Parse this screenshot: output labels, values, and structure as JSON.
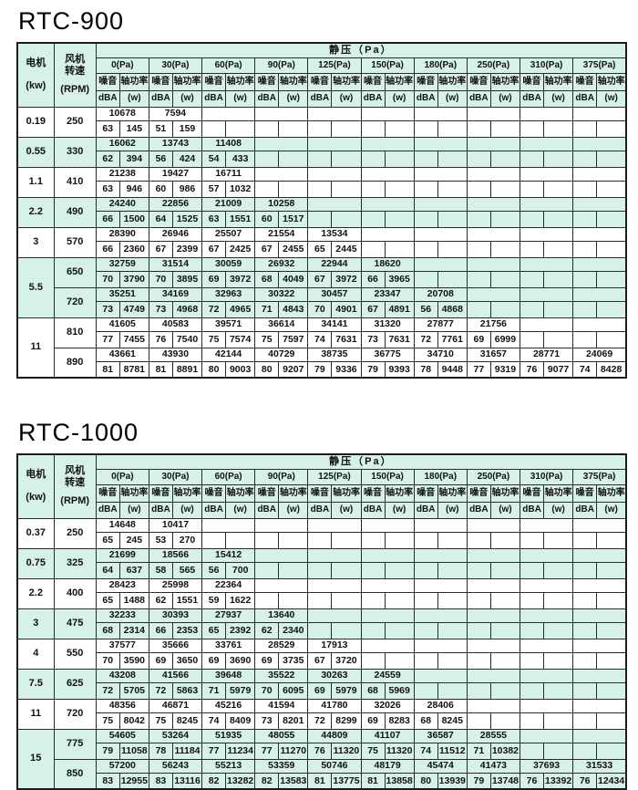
{
  "page": {
    "colors": {
      "row_shade": "#d6f1e7",
      "border": "#2b2b2b",
      "text": "#111111",
      "background": "#ffffff"
    }
  },
  "header": {
    "motor_label": "电机",
    "motor_unit": "(kw)",
    "fan_label_line1": "风机",
    "fan_label_line2": "转速",
    "fan_unit": "(RPM)",
    "static_pressure_label": "静压（Pa）",
    "noise_label": "噪音",
    "noise_unit": "dBA",
    "power_label": "轴功率",
    "power_unit": "(w)",
    "pressure_labels": [
      "0(Pa)",
      "30(Pa)",
      "60(Pa)",
      "90(Pa)",
      "125(Pa)",
      "150(Pa)",
      "180(Pa)",
      "250(Pa)",
      "310(Pa)",
      "375(Pa)"
    ]
  },
  "tables": [
    {
      "title": "RTC-900",
      "motor_groups": [
        {
          "motor": "0.19",
          "shaded": false,
          "speeds": [
            {
              "rpm": "250",
              "cells": [
                [
                  "10678",
                  "63",
                  "145"
                ],
                [
                  "7594",
                  "51",
                  "159"
                ],
                null,
                null,
                null,
                null,
                null,
                null,
                null,
                null
              ]
            }
          ]
        },
        {
          "motor": "0.55",
          "shaded": true,
          "speeds": [
            {
              "rpm": "330",
              "cells": [
                [
                  "16062",
                  "62",
                  "394"
                ],
                [
                  "13743",
                  "56",
                  "424"
                ],
                [
                  "11408",
                  "54",
                  "433"
                ],
                null,
                null,
                null,
                null,
                null,
                null,
                null
              ]
            }
          ]
        },
        {
          "motor": "1.1",
          "shaded": false,
          "speeds": [
            {
              "rpm": "410",
              "cells": [
                [
                  "21238",
                  "63",
                  "946"
                ],
                [
                  "19427",
                  "60",
                  "986"
                ],
                [
                  "16711",
                  "57",
                  "1032"
                ],
                null,
                null,
                null,
                null,
                null,
                null,
                null
              ]
            }
          ]
        },
        {
          "motor": "2.2",
          "shaded": true,
          "speeds": [
            {
              "rpm": "490",
              "cells": [
                [
                  "24240",
                  "66",
                  "1500"
                ],
                [
                  "22856",
                  "64",
                  "1525"
                ],
                [
                  "21009",
                  "63",
                  "1551"
                ],
                [
                  "10258",
                  "60",
                  "1517"
                ],
                null,
                null,
                null,
                null,
                null,
                null
              ]
            }
          ]
        },
        {
          "motor": "3",
          "shaded": false,
          "speeds": [
            {
              "rpm": "570",
              "cells": [
                [
                  "28390",
                  "66",
                  "2360"
                ],
                [
                  "26946",
                  "67",
                  "2399"
                ],
                [
                  "25507",
                  "67",
                  "2425"
                ],
                [
                  "21554",
                  "67",
                  "2455"
                ],
                [
                  "13534",
                  "65",
                  "2445"
                ],
                null,
                null,
                null,
                null,
                null
              ]
            }
          ]
        },
        {
          "motor": "5.5",
          "shaded": true,
          "speeds": [
            {
              "rpm": "650",
              "cells": [
                [
                  "32759",
                  "70",
                  "3790"
                ],
                [
                  "31514",
                  "70",
                  "3895"
                ],
                [
                  "30059",
                  "69",
                  "3972"
                ],
                [
                  "26932",
                  "68",
                  "4049"
                ],
                [
                  "22944",
                  "67",
                  "3972"
                ],
                [
                  "18620",
                  "66",
                  "3965"
                ],
                null,
                null,
                null,
                null
              ]
            },
            {
              "rpm": "720",
              "cells": [
                [
                  "35251",
                  "73",
                  "4749"
                ],
                [
                  "34169",
                  "73",
                  "4968"
                ],
                [
                  "32963",
                  "72",
                  "4965"
                ],
                [
                  "30322",
                  "71",
                  "4843"
                ],
                [
                  "30457",
                  "70",
                  "4901"
                ],
                [
                  "23347",
                  "67",
                  "4891"
                ],
                [
                  "20708",
                  "56",
                  "4868"
                ],
                null,
                null,
                null
              ]
            }
          ]
        },
        {
          "motor": "11",
          "shaded": false,
          "speeds": [
            {
              "rpm": "810",
              "cells": [
                [
                  "41605",
                  "77",
                  "7455"
                ],
                [
                  "40583",
                  "76",
                  "7540"
                ],
                [
                  "39571",
                  "75",
                  "7574"
                ],
                [
                  "36614",
                  "75",
                  "7597"
                ],
                [
                  "34141",
                  "74",
                  "7631"
                ],
                [
                  "31320",
                  "73",
                  "7631"
                ],
                [
                  "27877",
                  "72",
                  "7761"
                ],
                [
                  "21756",
                  "69",
                  "6999"
                ],
                null,
                null
              ]
            },
            {
              "rpm": "890",
              "cells": [
                [
                  "43661",
                  "81",
                  "8781"
                ],
                [
                  "43930",
                  "81",
                  "8891"
                ],
                [
                  "42144",
                  "80",
                  "9003"
                ],
                [
                  "40729",
                  "80",
                  "9207"
                ],
                [
                  "38735",
                  "79",
                  "9336"
                ],
                [
                  "36775",
                  "79",
                  "9393"
                ],
                [
                  "34710",
                  "78",
                  "9448"
                ],
                [
                  "31657",
                  "77",
                  "9319"
                ],
                [
                  "28771",
                  "76",
                  "9077"
                ],
                [
                  "24069",
                  "74",
                  "8428"
                ]
              ]
            }
          ]
        }
      ]
    },
    {
      "title": "RTC-1000",
      "motor_groups": [
        {
          "motor": "0.37",
          "shaded": false,
          "speeds": [
            {
              "rpm": "250",
              "cells": [
                [
                  "14648",
                  "65",
                  "245"
                ],
                [
                  "10417",
                  "53",
                  "270"
                ],
                null,
                null,
                null,
                null,
                null,
                null,
                null,
                null
              ]
            }
          ]
        },
        {
          "motor": "0.75",
          "shaded": true,
          "speeds": [
            {
              "rpm": "325",
              "cells": [
                [
                  "21699",
                  "64",
                  "637"
                ],
                [
                  "18566",
                  "58",
                  "565"
                ],
                [
                  "15412",
                  "56",
                  "700"
                ],
                null,
                null,
                null,
                null,
                null,
                null,
                null
              ]
            }
          ]
        },
        {
          "motor": "2.2",
          "shaded": false,
          "speeds": [
            {
              "rpm": "400",
              "cells": [
                [
                  "28423",
                  "65",
                  "1488"
                ],
                [
                  "25998",
                  "62",
                  "1551"
                ],
                [
                  "22364",
                  "59",
                  "1622"
                ],
                null,
                null,
                null,
                null,
                null,
                null,
                null
              ]
            }
          ]
        },
        {
          "motor": "3",
          "shaded": true,
          "speeds": [
            {
              "rpm": "475",
              "cells": [
                [
                  "32233",
                  "68",
                  "2314"
                ],
                [
                  "30393",
                  "66",
                  "2353"
                ],
                [
                  "27937",
                  "65",
                  "2392"
                ],
                [
                  "13640",
                  "62",
                  "2340"
                ],
                null,
                null,
                null,
                null,
                null,
                null
              ]
            }
          ]
        },
        {
          "motor": "4",
          "shaded": false,
          "speeds": [
            {
              "rpm": "550",
              "cells": [
                [
                  "37577",
                  "70",
                  "3590"
                ],
                [
                  "35666",
                  "69",
                  "3650"
                ],
                [
                  "33761",
                  "69",
                  "3690"
                ],
                [
                  "28529",
                  "69",
                  "3735"
                ],
                [
                  "17913",
                  "67",
                  "3720"
                ],
                null,
                null,
                null,
                null,
                null
              ]
            }
          ]
        },
        {
          "motor": "7.5",
          "shaded": true,
          "speeds": [
            {
              "rpm": "625",
              "cells": [
                [
                  "43208",
                  "72",
                  "5705"
                ],
                [
                  "41566",
                  "72",
                  "5863"
                ],
                [
                  "39648",
                  "71",
                  "5979"
                ],
                [
                  "35522",
                  "70",
                  "6095"
                ],
                [
                  "30263",
                  "69",
                  "5979"
                ],
                [
                  "24559",
                  "68",
                  "5969"
                ],
                null,
                null,
                null,
                null
              ]
            }
          ]
        },
        {
          "motor": "11",
          "shaded": false,
          "speeds": [
            {
              "rpm": "720",
              "cells": [
                [
                  "48356",
                  "75",
                  "8042"
                ],
                [
                  "46871",
                  "75",
                  "8245"
                ],
                [
                  "45216",
                  "74",
                  "8409"
                ],
                [
                  "41594",
                  "73",
                  "8201"
                ],
                [
                  "41780",
                  "72",
                  "8299"
                ],
                [
                  "32026",
                  "69",
                  "8283"
                ],
                [
                  "28406",
                  "68",
                  "8245"
                ],
                null,
                null,
                null
              ]
            }
          ]
        },
        {
          "motor": "15",
          "shaded": true,
          "speeds": [
            {
              "rpm": "775",
              "cells": [
                [
                  "54605",
                  "79",
                  "11058"
                ],
                [
                  "53264",
                  "78",
                  "11184"
                ],
                [
                  "51935",
                  "77",
                  "11234"
                ],
                [
                  "48055",
                  "77",
                  "11270"
                ],
                [
                  "44809",
                  "76",
                  "11320"
                ],
                [
                  "41107",
                  "75",
                  "11320"
                ],
                [
                  "36587",
                  "74",
                  "11512"
                ],
                [
                  "28555",
                  "71",
                  "10382"
                ],
                null,
                null
              ]
            },
            {
              "rpm": "850",
              "cells": [
                [
                  "57200",
                  "83",
                  "12955"
                ],
                [
                  "56243",
                  "83",
                  "13116"
                ],
                [
                  "55213",
                  "82",
                  "13282"
                ],
                [
                  "53359",
                  "82",
                  "13583"
                ],
                [
                  "50746",
                  "81",
                  "13775"
                ],
                [
                  "48179",
                  "81",
                  "13858"
                ],
                [
                  "45474",
                  "80",
                  "13939"
                ],
                [
                  "41473",
                  "79",
                  "13748"
                ],
                [
                  "37693",
                  "76",
                  "13392"
                ],
                [
                  "31533",
                  "76",
                  "12434"
                ]
              ]
            }
          ]
        }
      ]
    }
  ]
}
